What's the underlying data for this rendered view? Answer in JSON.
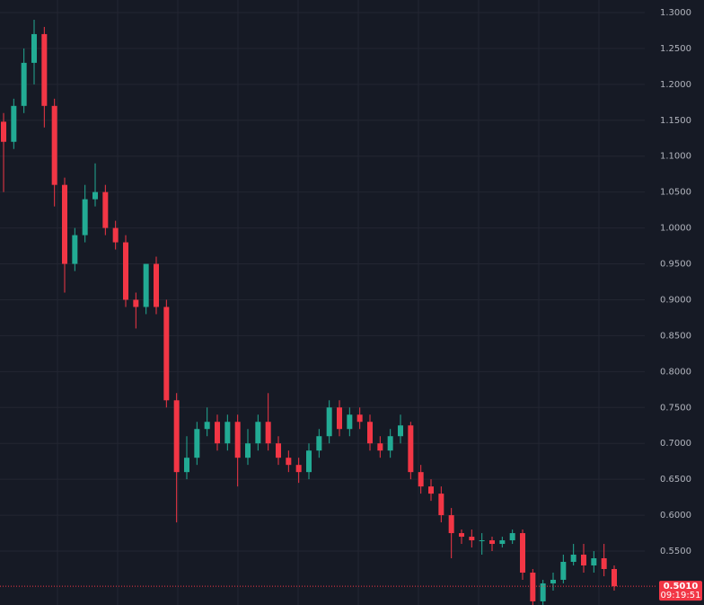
{
  "chart_data": {
    "type": "candlestick",
    "open": [
      1.148,
      1.12,
      1.17,
      1.23,
      1.27,
      1.17,
      1.06,
      0.95,
      0.99,
      1.04,
      1.05,
      1.0,
      0.98,
      0.9,
      0.89,
      0.95,
      0.89,
      0.76,
      0.66,
      0.68,
      0.72,
      0.73,
      0.7,
      0.73,
      0.68,
      0.7,
      0.73,
      0.7,
      0.68,
      0.67,
      0.66,
      0.69,
      0.71,
      0.75,
      0.72,
      0.74,
      0.73,
      0.7,
      0.69,
      0.71,
      0.725,
      0.66,
      0.64,
      0.63,
      0.6,
      0.575,
      0.57,
      0.565,
      0.565,
      0.56,
      0.565,
      0.575,
      0.52,
      0.48,
      0.505,
      0.51,
      0.535,
      0.545,
      0.53,
      0.54,
      0.525
    ],
    "high": [
      1.16,
      1.18,
      1.25,
      1.29,
      1.28,
      1.18,
      1.07,
      1.0,
      1.06,
      1.09,
      1.06,
      1.01,
      0.99,
      0.91,
      0.95,
      0.96,
      0.9,
      0.77,
      0.71,
      0.73,
      0.75,
      0.74,
      0.74,
      0.74,
      0.72,
      0.74,
      0.77,
      0.71,
      0.69,
      0.68,
      0.7,
      0.72,
      0.76,
      0.76,
      0.75,
      0.75,
      0.74,
      0.71,
      0.72,
      0.74,
      0.73,
      0.67,
      0.65,
      0.64,
      0.61,
      0.58,
      0.58,
      0.575,
      0.57,
      0.57,
      0.58,
      0.58,
      0.525,
      0.51,
      0.52,
      0.545,
      0.56,
      0.56,
      0.55,
      0.56,
      0.53
    ],
    "low": [
      1.05,
      1.11,
      1.16,
      1.2,
      1.14,
      1.03,
      0.91,
      0.94,
      0.98,
      1.03,
      0.99,
      0.97,
      0.89,
      0.86,
      0.88,
      0.88,
      0.75,
      0.59,
      0.65,
      0.67,
      0.71,
      0.69,
      0.69,
      0.64,
      0.67,
      0.69,
      0.69,
      0.67,
      0.66,
      0.645,
      0.65,
      0.68,
      0.7,
      0.71,
      0.71,
      0.72,
      0.69,
      0.68,
      0.68,
      0.7,
      0.65,
      0.63,
      0.62,
      0.59,
      0.54,
      0.56,
      0.555,
      0.545,
      0.55,
      0.555,
      0.56,
      0.51,
      0.47,
      0.475,
      0.495,
      0.505,
      0.53,
      0.52,
      0.52,
      0.515,
      0.495
    ],
    "close": [
      1.12,
      1.17,
      1.23,
      1.27,
      1.17,
      1.06,
      0.95,
      0.99,
      1.04,
      1.05,
      1.0,
      0.98,
      0.9,
      0.89,
      0.95,
      0.89,
      0.76,
      0.66,
      0.68,
      0.72,
      0.73,
      0.7,
      0.73,
      0.68,
      0.7,
      0.73,
      0.7,
      0.68,
      0.67,
      0.66,
      0.69,
      0.71,
      0.75,
      0.72,
      0.74,
      0.73,
      0.7,
      0.69,
      0.71,
      0.725,
      0.66,
      0.64,
      0.63,
      0.6,
      0.575,
      0.57,
      0.565,
      0.565,
      0.56,
      0.565,
      0.575,
      0.52,
      0.48,
      0.505,
      0.51,
      0.535,
      0.545,
      0.53,
      0.54,
      0.525,
      0.501
    ],
    "up_color": "#22ab94",
    "down_color": "#f23645",
    "ylim": [
      0.4749,
      1.3175
    ],
    "yticks": [
      {
        "value": 1.3,
        "label": "1.3000"
      },
      {
        "value": 1.25,
        "label": "1.2500"
      },
      {
        "value": 1.2,
        "label": "1.2000"
      },
      {
        "value": 1.15,
        "label": "1.1500"
      },
      {
        "value": 1.1,
        "label": "1.1000"
      },
      {
        "value": 1.05,
        "label": "1.0500"
      },
      {
        "value": 1.0,
        "label": "1.0000"
      },
      {
        "value": 0.95,
        "label": "0.9500"
      },
      {
        "value": 0.9,
        "label": "0.9000"
      },
      {
        "value": 0.85,
        "label": "0.8500"
      },
      {
        "value": 0.8,
        "label": "0.8000"
      },
      {
        "value": 0.75,
        "label": "0.7500"
      },
      {
        "value": 0.7,
        "label": "0.7000"
      },
      {
        "value": 0.65,
        "label": "0.6500"
      },
      {
        "value": 0.6,
        "label": "0.6000"
      },
      {
        "value": 0.55,
        "label": "0.5500"
      }
    ],
    "grid": true,
    "last_price": {
      "value": 0.501,
      "label": "0.5010"
    },
    "countdown": "09:19:51"
  }
}
